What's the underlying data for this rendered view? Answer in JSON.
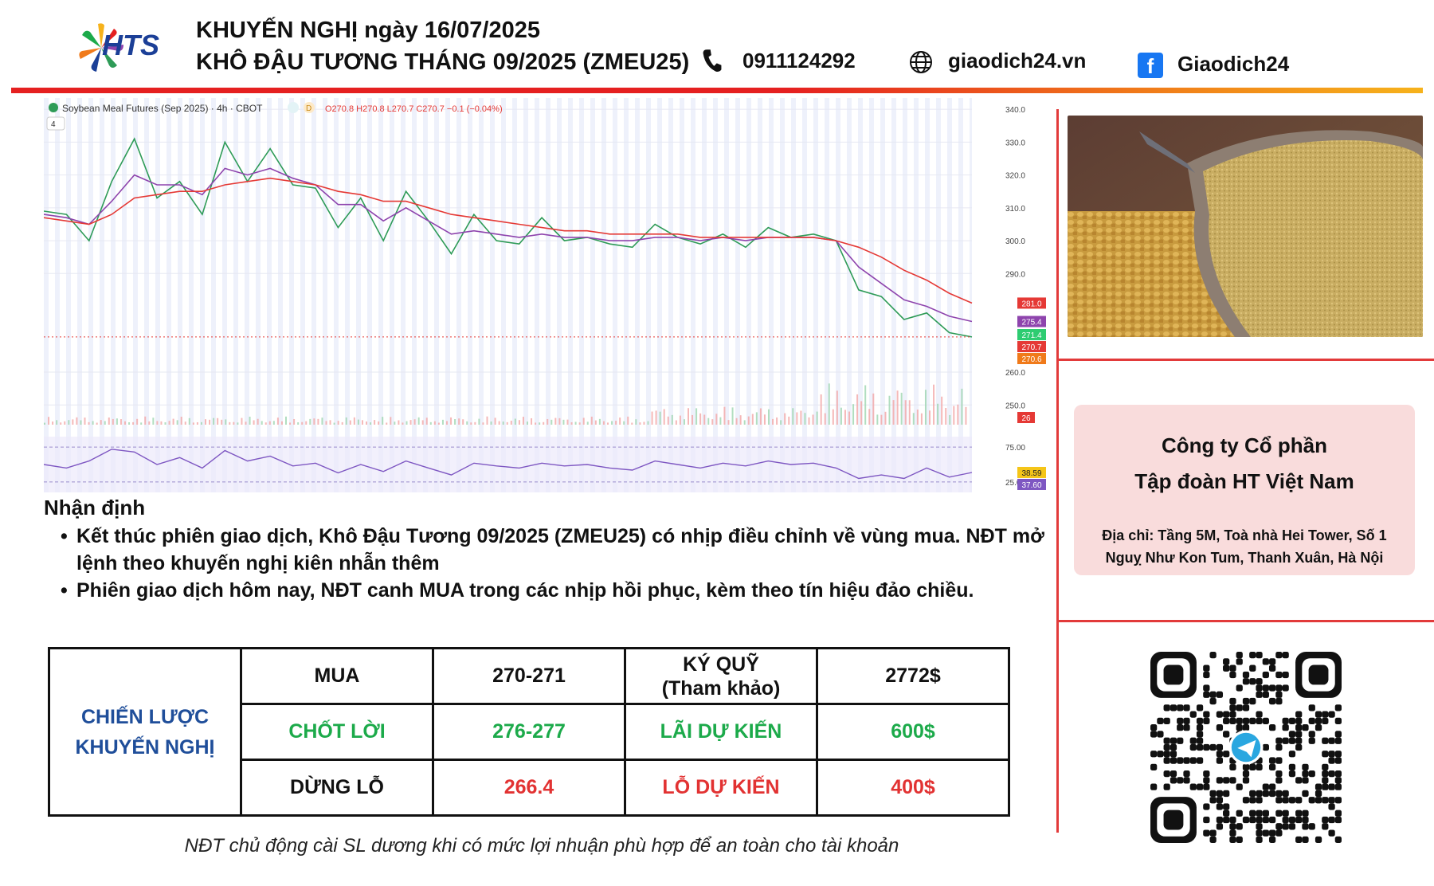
{
  "header": {
    "logo_text": "HTS",
    "line1": "KHUYẾN NGHỊ ngày 16/07/2025",
    "line2": "KHÔ ĐẬU TƯƠNG THÁNG 09/2025 (ZMEU25)",
    "phone": "0911124292",
    "website": "giaodich24.vn",
    "facebook": "Giaodich24"
  },
  "chart_data": {
    "type": "line",
    "title": "Soybean Meal Futures (Sep 2025) · 4h · CBOT",
    "ohlc": "O270.8 H270.8 L270.7 C270.7 −0.1 (−0.04%)",
    "interval_badge": "D",
    "collapse_label": "4",
    "y_ticks": [
      340.0,
      330.0,
      320.0,
      310.0,
      300.0,
      290.0,
      260.0,
      250.0
    ],
    "ylim": [
      244,
      341
    ],
    "price_labels": [
      {
        "value": 281.0,
        "color": "#e53935"
      },
      {
        "value": 275.4,
        "color": "#8e44ad"
      },
      {
        "value": 271.4,
        "color": "#2ecc71"
      },
      {
        "value": 270.7,
        "color": "#e53935"
      },
      {
        "value": 270.6,
        "color": "#f07a1a"
      }
    ],
    "volume_label": "26",
    "rsi_ticks": [
      75.0,
      25.0
    ],
    "rsi_labels": [
      {
        "value": 38.59,
        "color": "#f5c518"
      },
      {
        "value": 37.6,
        "color": "#7e57c2"
      }
    ],
    "series": [
      {
        "name": "",
        "color": "#2e9b57",
        "values": [
          309,
          308,
          300,
          318,
          331,
          313,
          318,
          308,
          330,
          318,
          328,
          317,
          316,
          304,
          313,
          300,
          315,
          306,
          296,
          308,
          300,
          299,
          307,
          300,
          301,
          299,
          298,
          305,
          301,
          299,
          302,
          298,
          304,
          301,
          302,
          300,
          285,
          283,
          276,
          278,
          272,
          270.7
        ]
      },
      {
        "name": "",
        "color": "#8e44ad",
        "values": [
          308,
          307,
          305,
          312,
          320,
          317,
          317,
          314,
          322,
          320,
          322,
          319,
          317,
          311,
          311,
          306,
          310,
          306,
          302,
          303,
          302,
          301,
          302,
          301,
          301,
          300,
          300,
          301,
          301,
          300,
          301,
          300,
          301,
          301,
          301,
          300,
          292,
          287,
          282,
          280,
          277,
          275.4
        ]
      },
      {
        "name": "",
        "color": "#e53935",
        "values": [
          307,
          306,
          305,
          308,
          313,
          314,
          315,
          315,
          317,
          318,
          319,
          318,
          317,
          315,
          314,
          312,
          312,
          310,
          308,
          307,
          306,
          305,
          304,
          303,
          303,
          302,
          302,
          302,
          302,
          301,
          301,
          301,
          301,
          301,
          301,
          300,
          298,
          295,
          291,
          288,
          284,
          281.0
        ]
      }
    ],
    "rsi": [
      50,
      45,
      55,
      72,
      68,
      50,
      60,
      45,
      70,
      55,
      62,
      48,
      52,
      38,
      50,
      40,
      55,
      45,
      35,
      52,
      48,
      45,
      52,
      48,
      50,
      45,
      42,
      55,
      50,
      45,
      52,
      48,
      55,
      50,
      52,
      45,
      30,
      35,
      30,
      45,
      32,
      38.59
    ]
  },
  "analysis": {
    "title": "Nhận định",
    "bullets": [
      "Kết thúc phiên giao dịch, Khô Đậu Tương 09/2025 (ZMEU25) có nhịp điều chỉnh về vùng mua. NĐT mở lệnh theo khuyến nghị kiên nhẫn thêm",
      "Phiên giao dịch hôm nay, NĐT canh MUA trong các nhịp hồi phục, kèm theo tín hiệu đảo chiều."
    ]
  },
  "strategy": {
    "label_line1": "CHIẾN LƯỢC",
    "label_line2": "KHUYẾN NGHỊ",
    "rows": [
      {
        "action": "MUA",
        "price": "270-271",
        "metric": "KÝ QUỸ",
        "metric_sub": "(Tham khảo)",
        "amount": "2772$"
      },
      {
        "action": "CHỐT LỜI",
        "price": "276-277",
        "metric": "LÃI DỰ KIẾN",
        "metric_sub": "",
        "amount": "600$"
      },
      {
        "action": "DỪNG LỖ",
        "price": "266.4",
        "metric": "LỖ DỰ KIẾN",
        "metric_sub": "",
        "amount": "400$"
      }
    ]
  },
  "company": {
    "line1": "Công ty Cổ phần",
    "line2": "Tập đoàn HT Việt Nam",
    "address": "Địa chỉ: Tầng 5M, Toà nhà Hei Tower, Số 1 Nguỵ Như Kon Tum, Thanh Xuân, Hà Nội"
  },
  "footnote": "NĐT chủ động cài SL dương khi có mức lợi nhuận phù hợp để an toàn cho tài khoản"
}
